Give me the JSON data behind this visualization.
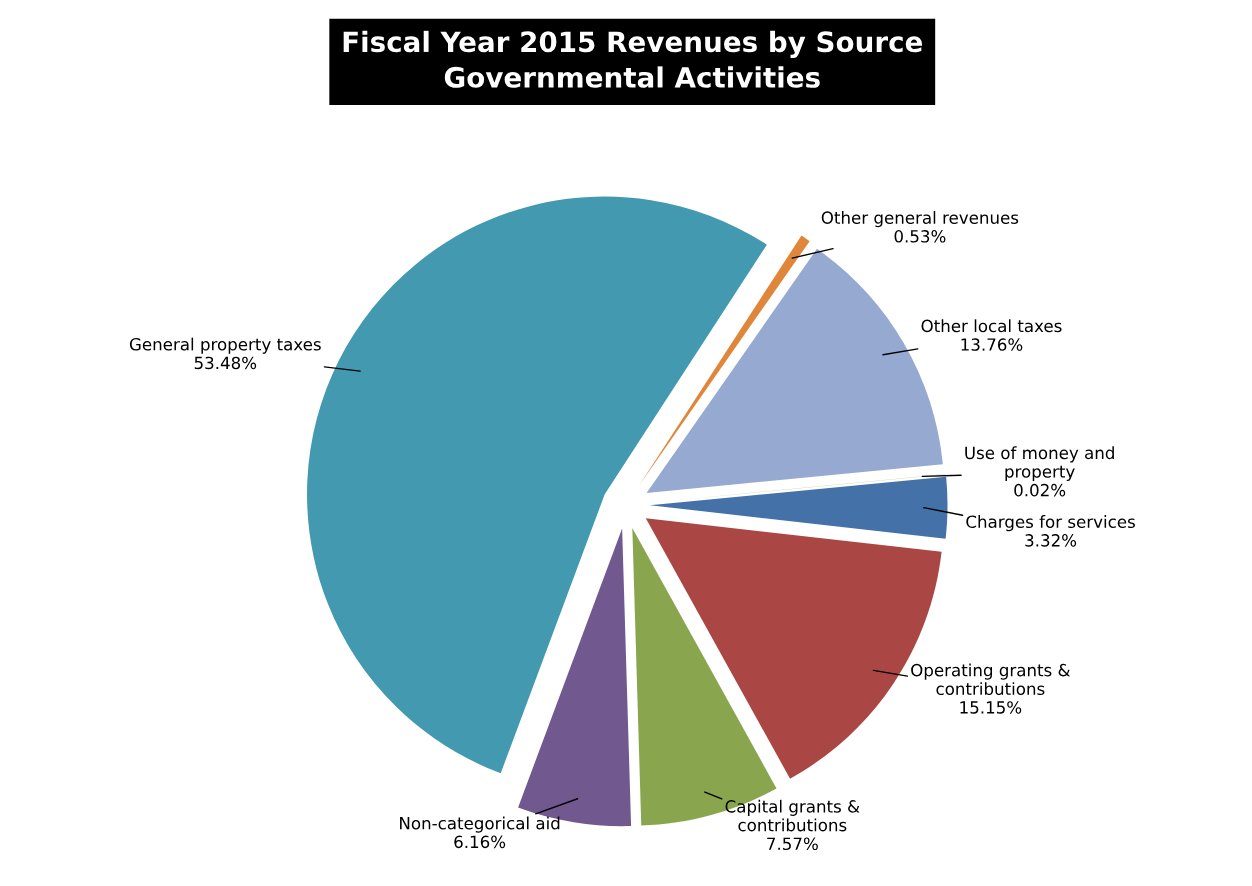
{
  "chart_data": {
    "type": "pie",
    "title": "Fiscal Year 2015 Revenues by Source\nGovernmental Activities",
    "categories": [
      "Other general revenues",
      "Other local taxes",
      "Use of money and\nproperty",
      "Charges for services",
      "Operating grants &\ncontributions",
      "Capital grants &\ncontributions",
      "Non-categorical aid",
      "General property taxes"
    ],
    "values": [
      0.53,
      13.76,
      0.02,
      3.32,
      15.15,
      7.57,
      6.16,
      53.48
    ],
    "value_labels": [
      "0.53%",
      "13.76%",
      "0.02%",
      "3.32%",
      "15.15%",
      "7.57%",
      "6.16%",
      "53.48%"
    ],
    "colors": [
      "#e0863a",
      "#95a9d1",
      "#a8c47c",
      "#4472a8",
      "#aa4643",
      "#89a54e",
      "#71588f",
      "#4299b0"
    ],
    "legend": false
  }
}
